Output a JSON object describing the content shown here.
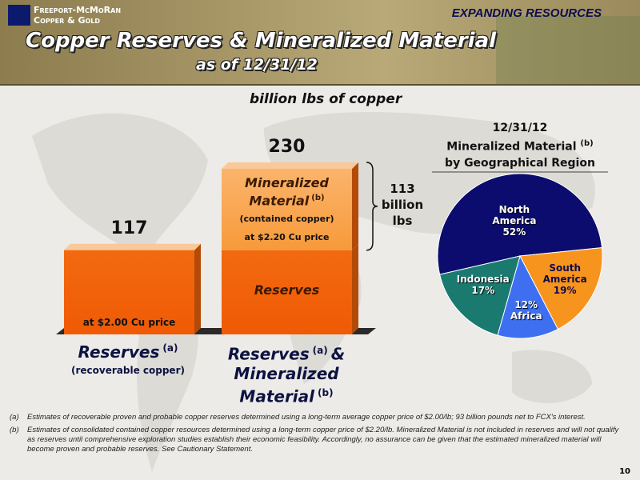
{
  "header": {
    "company": [
      "Freeport-McMoRan",
      "Copper & Gold"
    ],
    "tagline": "EXPANDING RESOURCES",
    "title": "Copper Reserves & Mineralized Material",
    "subtitle": "as of 12/31/12"
  },
  "chart_data": [
    {
      "type": "stacked-bar",
      "unit_label": "billion lbs of copper",
      "categories": [
        {
          "name": "Reserves",
          "note": "(a)",
          "detail": "(recoverable copper)"
        },
        {
          "name": "Reserves",
          "note": "(a)",
          "name2": "& Mineralized Material",
          "note2": "(b)"
        }
      ],
      "series": [
        {
          "name": "Reserves",
          "color": "#f26a10",
          "values": [
            117,
            117
          ],
          "price_label": "at $2.00 Cu price"
        },
        {
          "name": "Mineralized Material",
          "note": "(b)",
          "detail": "(contained copper)",
          "color": "#fbb46c",
          "values": [
            null,
            113
          ],
          "price_label": "at $2.20 Cu price"
        }
      ],
      "totals": [
        117,
        230
      ],
      "bracket_label": "113 billion lbs"
    },
    {
      "type": "pie",
      "title": "12/31/12",
      "subtitle": "Mineralized Material",
      "subtitle_note": "(b)",
      "subtitle2": "by Geographical Region",
      "categories": [
        "North America",
        "South America",
        "Africa",
        "Indonesia"
      ],
      "values": [
        52,
        19,
        12,
        17
      ],
      "value_labels": [
        "52%",
        "19%",
        "12%",
        "17%"
      ],
      "colors": [
        "#0c0c6e",
        "#f7941d",
        "#3d6ff0",
        "#1a7a70"
      ]
    }
  ],
  "footnotes": [
    {
      "mark": "(a)",
      "text": "Estimates of recoverable proven and probable copper reserves determined using a long-term average copper price of $2.00/lb; 93 billion pounds net to FCX's interest."
    },
    {
      "mark": "(b)",
      "text": "Estimates of consolidated contained copper resources determined using a long-term copper price of $2.20/lb. Mineralized Material is not included in reserves and will not qualify as reserves until comprehensive exploration studies establish their economic feasibility. Accordingly, no assurance can be given that the estimated mineralized material will become proven and probable reserves. See Cautionary Statement."
    }
  ],
  "page_number": "10"
}
